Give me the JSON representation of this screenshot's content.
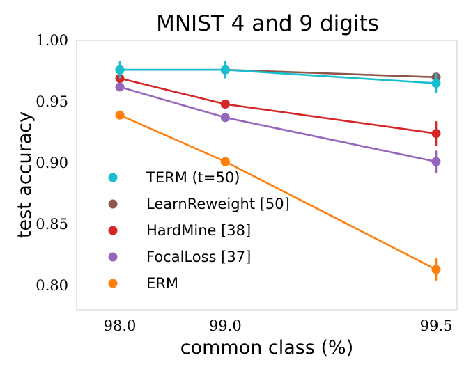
{
  "chart_data": {
    "type": "line",
    "title": "MNIST 4 and 9 digits",
    "xlabel": "common class (%)",
    "ylabel": "test accuracy",
    "x": [
      98.0,
      99.0,
      99.5
    ],
    "x_tick_labels": [
      "98.0",
      "99.0",
      "99.5"
    ],
    "x_scale": "reciprocal of (100 - x)",
    "ylim": [
      0.78,
      1.0
    ],
    "y_ticks": [
      0.8,
      0.85,
      0.9,
      0.95,
      1.0
    ],
    "y_tick_labels": [
      "0.80",
      "0.85",
      "0.90",
      "0.95",
      "1.00"
    ],
    "grid": false,
    "legend_position": "lower-left",
    "series": [
      {
        "name": "ERM",
        "color": "#ff7f0e",
        "values": [
          0.939,
          0.901,
          0.813
        ],
        "errors": [
          0.0,
          0.0,
          0.009
        ]
      },
      {
        "name": "FocalLoss [37]",
        "color": "#9467bd",
        "values": [
          0.962,
          0.937,
          0.901
        ],
        "errors": [
          0.0,
          0.0,
          0.009
        ]
      },
      {
        "name": "HardMine [38]",
        "color": "#d62728",
        "values": [
          0.969,
          0.948,
          0.924
        ],
        "errors": [
          0.0,
          0.0,
          0.01
        ]
      },
      {
        "name": "LearnReweight [50]",
        "color": "#8c564b",
        "values": [
          0.976,
          0.976,
          0.97
        ],
        "errors": [
          0.0,
          0.0,
          0.0
        ]
      },
      {
        "name": "TERM (t=50)",
        "color": "#17becf",
        "values": [
          0.976,
          0.976,
          0.965
        ],
        "errors": [
          0.007,
          0.007,
          0.008
        ]
      }
    ],
    "legend_order": [
      "TERM (t=50)",
      "LearnReweight [50]",
      "HardMine [38]",
      "FocalLoss [37]",
      "ERM"
    ]
  }
}
